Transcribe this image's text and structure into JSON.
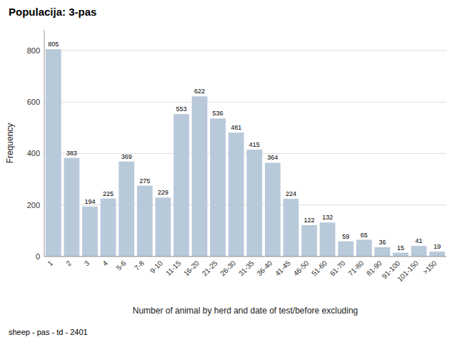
{
  "chart_data": {
    "type": "bar",
    "title": "Populacija: 3-pas",
    "xlabel": "Number of animal by herd and date of test/before excluding",
    "ylabel": "Frequency",
    "footer": "sheep - pas - td - 2401",
    "categories": [
      "1",
      "2",
      "3",
      "4",
      "5-6",
      "7-8",
      "9-10",
      "11-15",
      "16-20",
      "21-25",
      "26-30",
      "31-35",
      "36-40",
      "41-45",
      "46-50",
      "51-60",
      "61-70",
      "71-80",
      "81-90",
      "91-100",
      "101-150",
      ">150"
    ],
    "values": [
      805,
      383,
      194,
      225,
      369,
      275,
      229,
      553,
      622,
      536,
      481,
      415,
      364,
      224,
      122,
      132,
      59,
      65,
      36,
      15,
      41,
      19
    ],
    "color": "#b8c9da",
    "ylim": [
      0,
      880
    ],
    "yticks": [
      0,
      200,
      400,
      600,
      800
    ],
    "grid": true,
    "data_labels": true
  }
}
